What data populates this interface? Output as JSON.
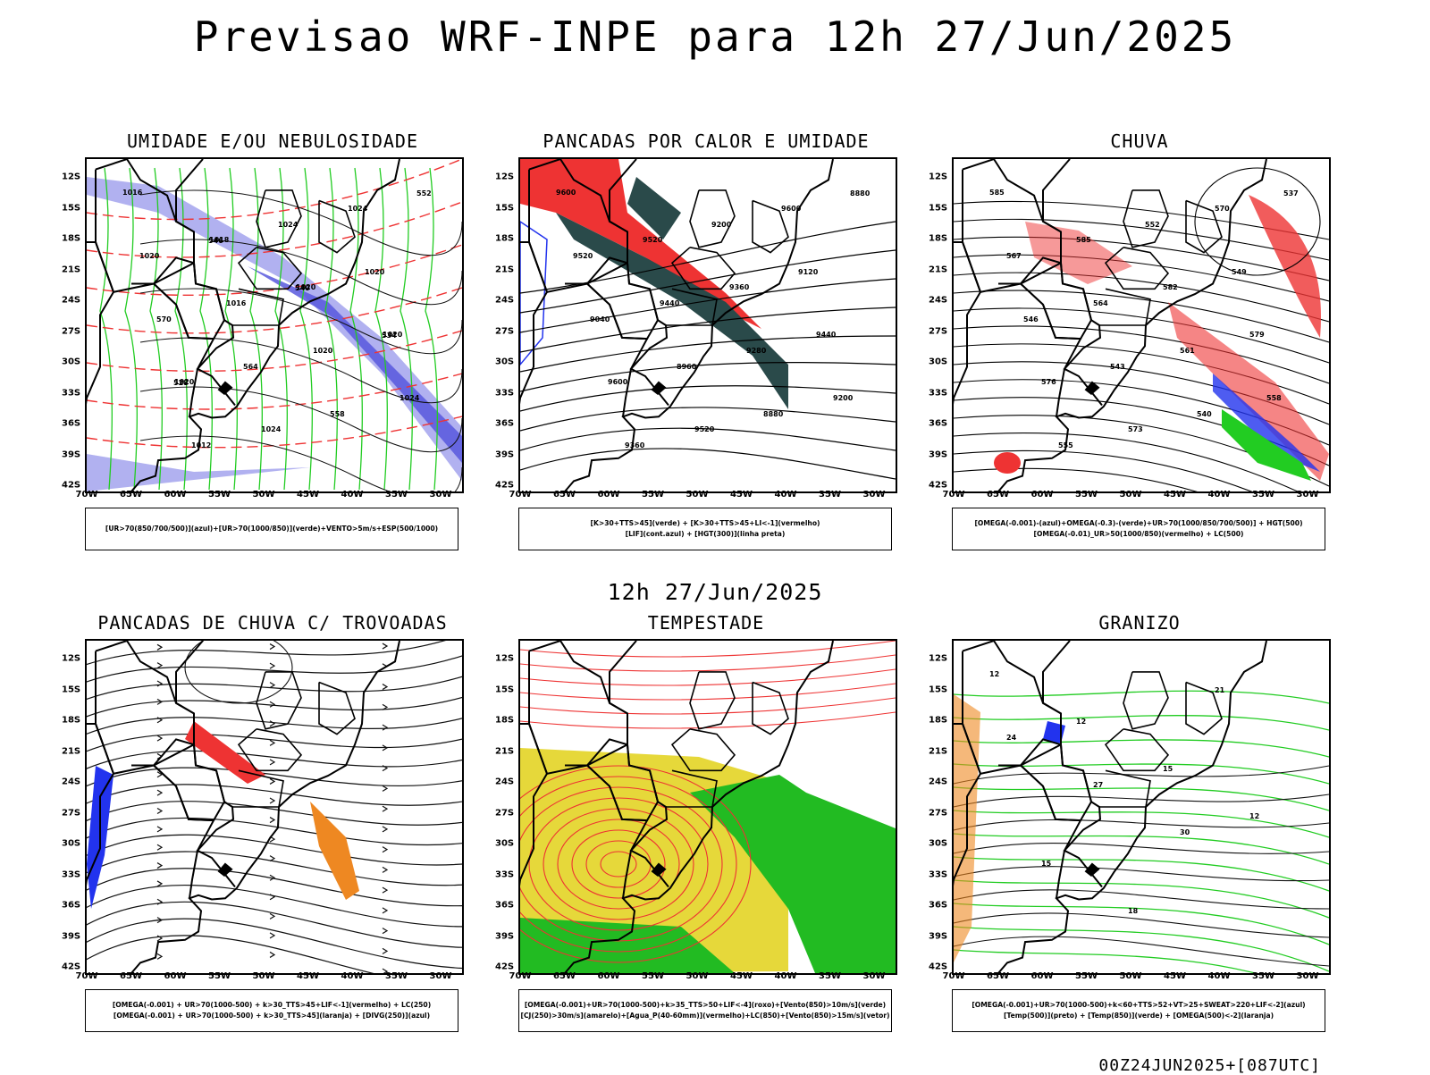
{
  "title": "Previsao WRF-INPE  para 12h 27/Jun/2025",
  "subtitle": "12h 27/Jun/2025",
  "footer": "00Z24JUN2025+[087UTC]",
  "lat_labels": [
    "12S",
    "15S",
    "18S",
    "21S",
    "24S",
    "27S",
    "30S",
    "33S",
    "36S",
    "39S",
    "42S"
  ],
  "lon_labels": [
    "70W",
    "65W",
    "60W",
    "55W",
    "50W",
    "45W",
    "40W",
    "35W",
    "30W"
  ],
  "panels": [
    {
      "title": "UMIDADE E/OU NEBULOSIDADE",
      "legend": [
        "[UR>70(850/700/500)](azul)+[UR>70(1000/850)](verde)+VENTO>5m/s+ESP(500/1000)"
      ],
      "contour_labels": [
        "1016",
        "1018",
        "1020",
        "1020",
        "1020",
        "1024",
        "1024",
        "1020",
        "1016",
        "1020",
        "1024",
        "1012",
        "1024",
        "1020",
        "570",
        "564",
        "558",
        "552",
        "546",
        "540",
        "534",
        "528"
      ]
    },
    {
      "title": "PANCADAS POR CALOR E UMIDADE",
      "legend": [
        "[K>30+TTS>45](verde) + [K>30+TTS>45+LI<-1](vermelho)",
        "[LIF](cont.azul) + [HGT(300)](linha preta)"
      ],
      "contour_labels": [
        "9600",
        "9520",
        "9360",
        "9440",
        "9600",
        "9520",
        "9600",
        "9520",
        "9440",
        "9280",
        "9200",
        "9360",
        "9200",
        "9120",
        "9040",
        "8960",
        "8880",
        "8880"
      ]
    },
    {
      "title": "CHUVA",
      "legend": [
        "[OMEGA(-0.001)-(azul)+OMEGA(-0.3)-(verde)+UR>70(1000/850/700/500)] + HGT(500)",
        "[OMEGA(-0.01)_UR>50(1000/850)(vermelho) + LC(500)"
      ],
      "contour_labels": [
        "585",
        "585",
        "582",
        "579",
        "576",
        "573",
        "570",
        "567",
        "564",
        "561",
        "558",
        "555",
        "552",
        "549",
        "546",
        "543",
        "540",
        "537"
      ]
    },
    {
      "title": "PANCADAS DE CHUVA C/ TROVOADAS",
      "legend": [
        "[OMEGA(-0.001) + UR>70(1000-500) + k>30_TTS>45+LIF<-1](vermelho) + LC(250)",
        "[OMEGA(-0.001) + UR>70(1000-500) + k>30_TTS>45](laranja) + [DIVG(250)](azul)"
      ],
      "contour_labels": []
    },
    {
      "title": "TEMPESTADE",
      "legend": [
        "[OMEGA(-0.001)+UR>70(1000-500)+k>35_TTS>50+LIF<-4](roxo)+[Vento(850)>10m/s](verde)",
        "[CJ(250)>30m/s](amarelo)+[Agua_P(40-60mm)](vermelho)+LC(850)+[Vento(850)>15m/s](vetor)"
      ],
      "contour_labels": []
    },
    {
      "title": "GRANIZO",
      "legend": [
        "[OMEGA(-0.001)+UR>70(1000-500)+k<60+TTS>52+VT>25+SWEAT>220+LIF<-2](azul)",
        "[Temp(500)](preto) + [Temp(850)](verde) + [OMEGA(500)<-2](laranja)"
      ],
      "contour_labels": [
        "12",
        "12",
        "15",
        "12",
        "15",
        "18",
        "21",
        "24",
        "27",
        "30"
      ]
    }
  ]
}
